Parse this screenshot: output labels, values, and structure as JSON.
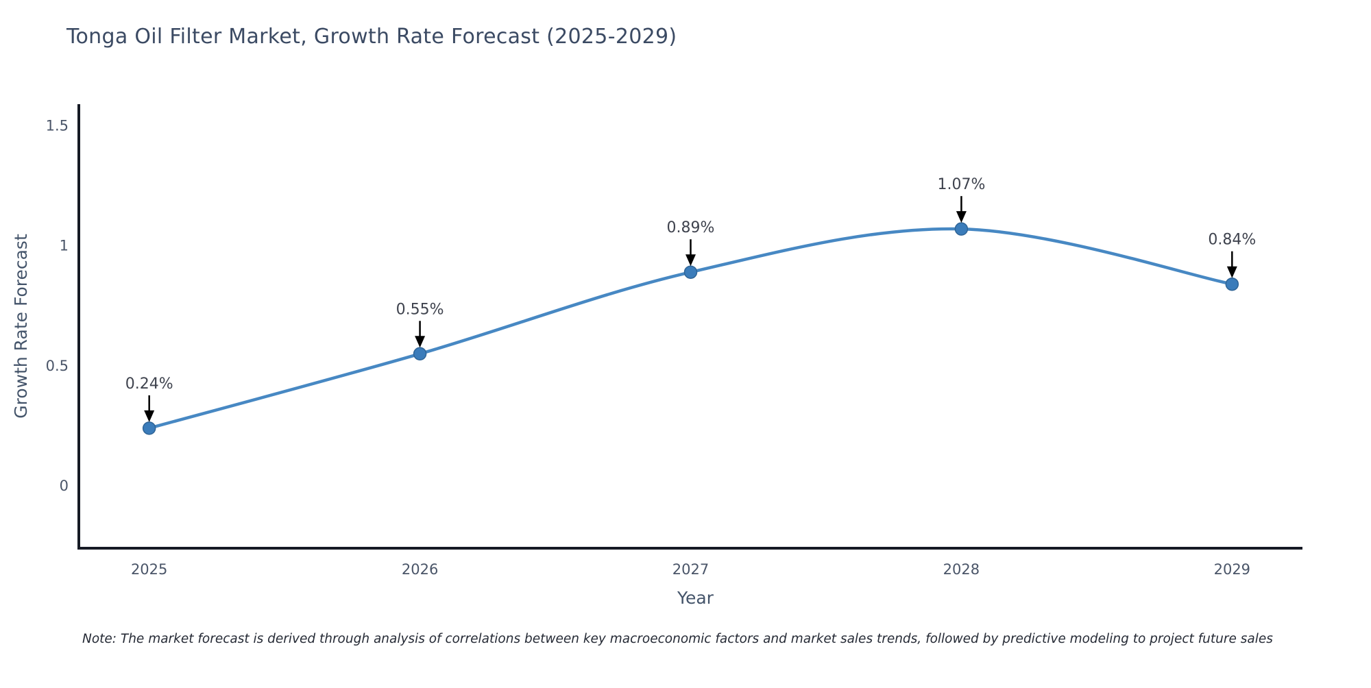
{
  "title": "Tonga Oil Filter Market, Growth Rate Forecast (2025-2029)",
  "note": "Note: The market forecast is derived through analysis of correlations between key macroeconomic factors and market sales trends, followed by predictive modeling to project future sales",
  "chart_data": {
    "type": "line",
    "title": "Tonga Oil Filter Market, Growth Rate Forecast (2025-2029)",
    "xlabel": "Year",
    "ylabel": "Growth Rate Forecast",
    "x": [
      2025,
      2026,
      2027,
      2028,
      2029
    ],
    "values": [
      0.24,
      0.55,
      0.89,
      1.07,
      0.84
    ],
    "point_labels": [
      "0.24%",
      "0.55%",
      "0.89%",
      "1.07%",
      "0.84%"
    ],
    "xtick_labels": [
      "2025",
      "2026",
      "2027",
      "2028",
      "2029"
    ],
    "yticks": [
      0,
      0.5,
      1,
      1.5
    ],
    "ytick_labels": [
      "0",
      "0.5",
      "1",
      "1.5"
    ],
    "xlim": [
      2024.74,
      2029.26
    ],
    "ylim": [
      -0.26,
      1.59
    ],
    "grid": false,
    "legend_position": "none",
    "line_shape": "spline",
    "colors": {
      "line": "#4788c3",
      "marker": "#3b7cba",
      "marker_edge": "#2f6496",
      "axis": "#161a24",
      "tick_label": "#4a5568",
      "title": "#3b4a63",
      "annotation_text": "#3f434e",
      "arrow": "#000000",
      "background": "#ffffff"
    }
  }
}
